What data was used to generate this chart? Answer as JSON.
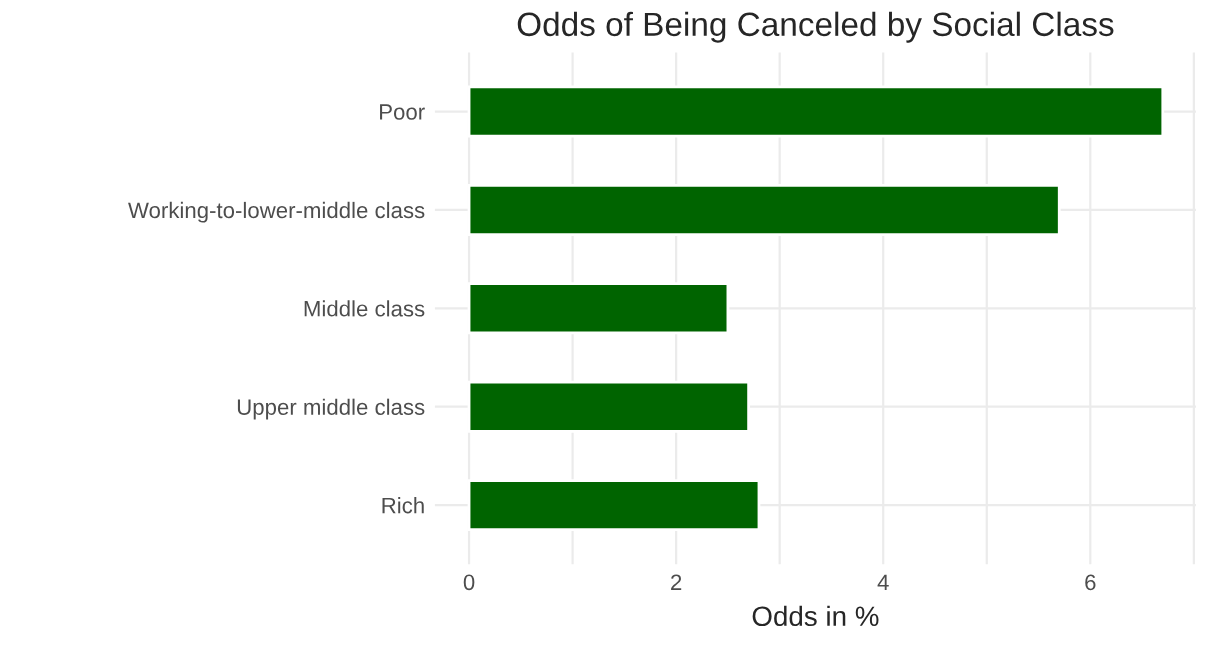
{
  "chart_data": {
    "type": "bar",
    "orientation": "horizontal",
    "title": "Odds of Being Canceled by Social Class",
    "xlabel": "Odds in %",
    "categories": [
      "Poor",
      "Working-to-lower-middle class",
      "Middle class",
      "Upper middle class",
      "Rich"
    ],
    "values": [
      6.7,
      5.7,
      2.5,
      2.7,
      2.8
    ],
    "color": "#006400",
    "xlim": [
      -0.33,
      7.02
    ],
    "xticks": [
      0,
      {
        "value": 1,
        "label": null
      },
      2,
      {
        "value": 3,
        "label": null
      },
      4,
      {
        "value": 5,
        "label": null
      },
      6,
      {
        "value": 7,
        "label": null
      }
    ],
    "grid": true,
    "legend": false
  }
}
